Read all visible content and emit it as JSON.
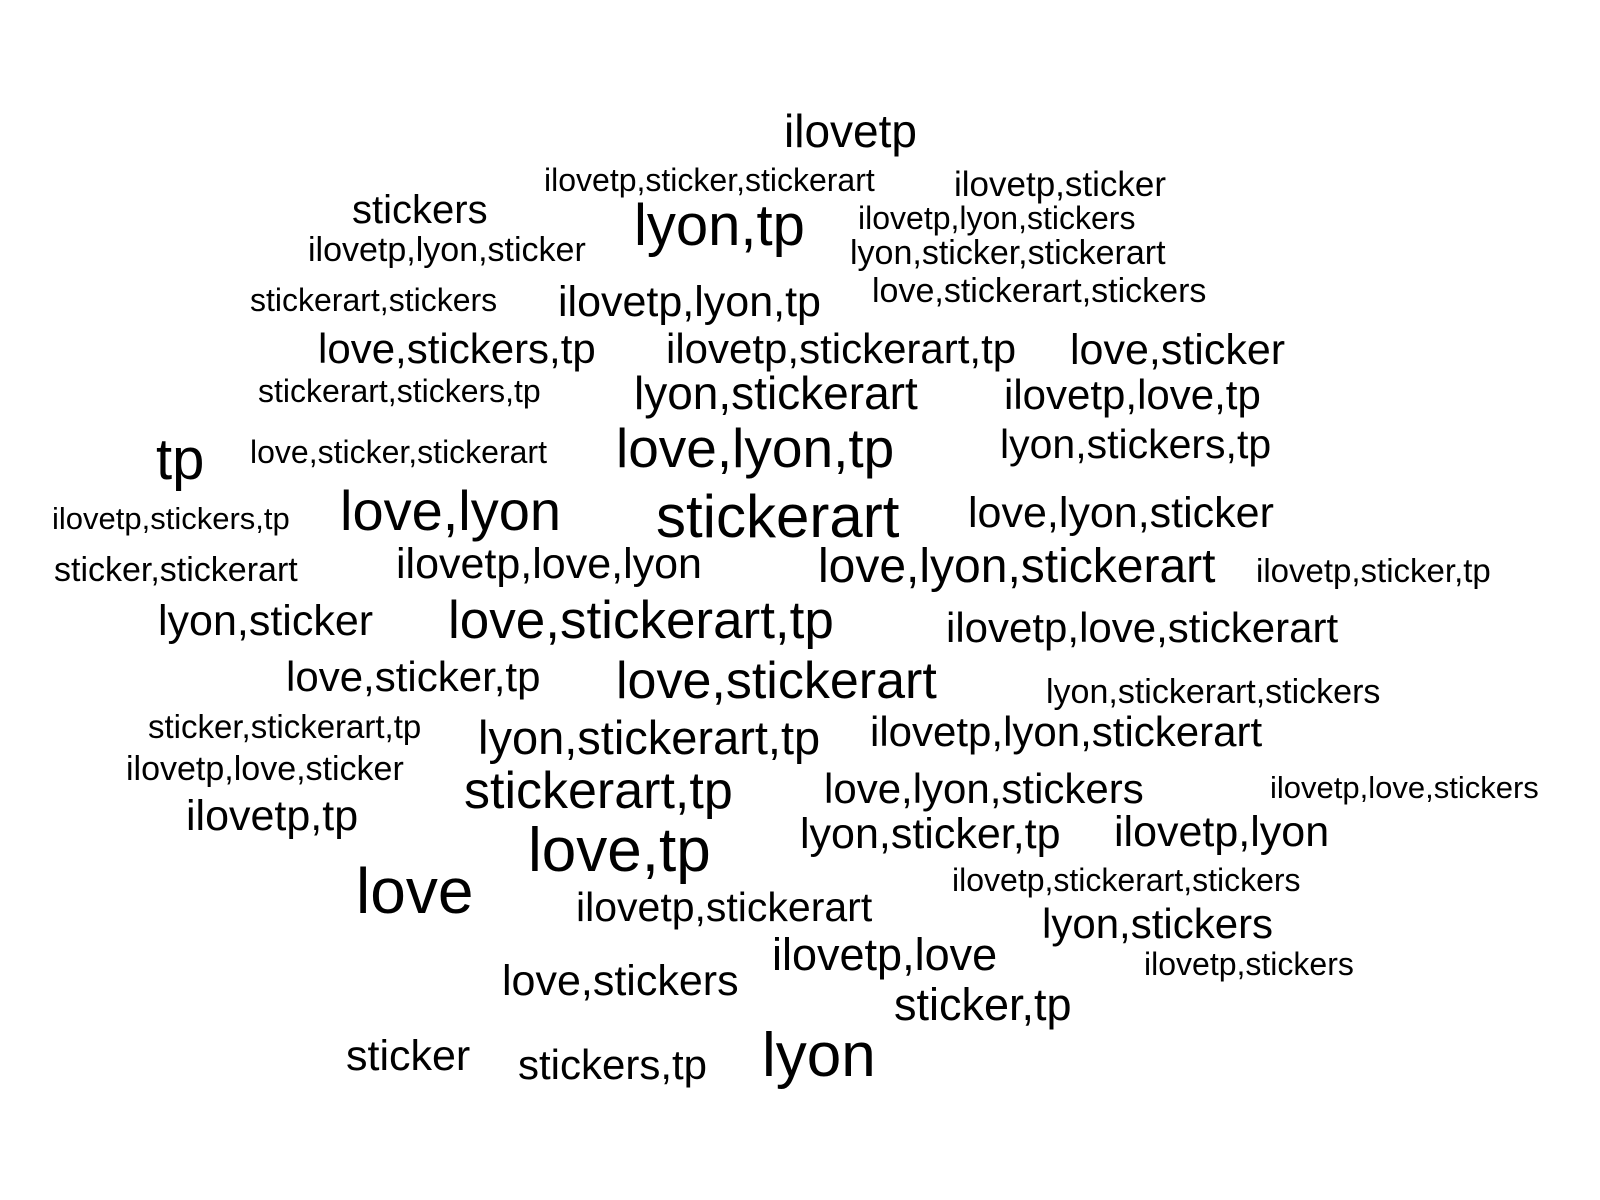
{
  "text_color": "#000000",
  "background_color": "#ffffff",
  "words": [
    "ilovetp",
    "ilovetp,sticker,stickerart",
    "ilovetp,sticker",
    "stickers",
    "lyon,tp",
    "ilovetp,lyon,stickers",
    "ilovetp,lyon,sticker",
    "lyon,sticker,stickerart",
    "love,stickerart,stickers",
    "stickerart,stickers",
    "ilovetp,lyon,tp",
    "love,stickers,tp",
    "ilovetp,stickerart,tp",
    "love,sticker",
    "stickerart,stickers,tp",
    "lyon,stickerart",
    "ilovetp,love,tp",
    "tp",
    "love,sticker,stickerart",
    "love,lyon,tp",
    "lyon,stickers,tp",
    "ilovetp,stickers,tp",
    "love,lyon",
    "stickerart",
    "love,lyon,sticker",
    "sticker,stickerart",
    "ilovetp,love,lyon",
    "love,lyon,stickerart",
    "ilovetp,sticker,tp",
    "lyon,sticker",
    "love,stickerart,tp",
    "ilovetp,love,stickerart",
    "love,sticker,tp",
    "love,stickerart",
    "lyon,stickerart,stickers",
    "sticker,stickerart,tp",
    "lyon,stickerart,tp",
    "ilovetp,lyon,stickerart",
    "ilovetp,love,sticker",
    "stickerart,tp",
    "love,lyon,stickers",
    "ilovetp,love,stickers",
    "ilovetp,tp",
    "lyon,sticker,tp",
    "ilovetp,lyon",
    "love,tp",
    "love",
    "ilovetp,stickerart,stickers",
    "ilovetp,stickerart",
    "lyon,stickers",
    "ilovetp,love",
    "ilovetp,stickers",
    "love,stickers",
    "sticker,tp",
    "sticker",
    "stickers,tp",
    "lyon"
  ]
}
